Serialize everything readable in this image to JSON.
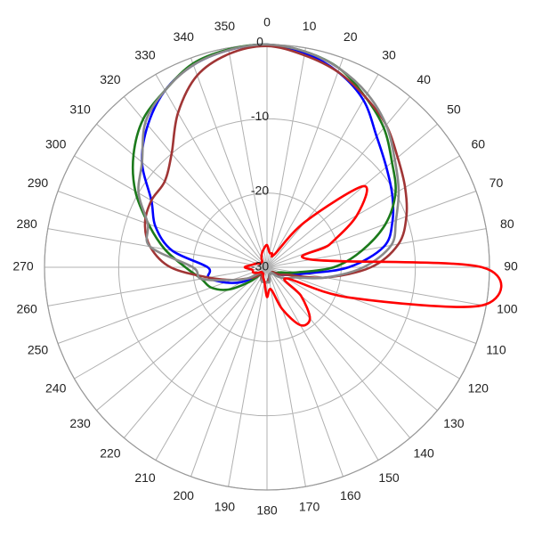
{
  "chart_data": {
    "type": "polar",
    "direction": "clockwise",
    "zero_location": "top",
    "rlim": [
      -30,
      0
    ],
    "rticks": [
      -30,
      -20,
      -10,
      0
    ],
    "thetaticks": [
      0,
      10,
      20,
      30,
      40,
      50,
      60,
      70,
      80,
      90,
      100,
      110,
      120,
      130,
      140,
      150,
      160,
      170,
      180,
      190,
      200,
      210,
      220,
      230,
      240,
      250,
      260,
      270,
      280,
      290,
      300,
      310,
      320,
      330,
      340,
      350
    ],
    "grid": true,
    "theta": [
      0,
      10,
      20,
      30,
      40,
      50,
      60,
      70,
      80,
      90,
      100,
      110,
      120,
      130,
      140,
      150,
      160,
      170,
      180,
      190,
      200,
      210,
      220,
      230,
      240,
      250,
      260,
      270,
      280,
      290,
      300,
      310,
      320,
      330,
      340,
      350
    ],
    "series": [
      {
        "color": "#0000ff",
        "values": [
          0,
          -0.7,
          -2,
          -4,
          -7,
          -9,
          -10.5,
          -12,
          -14,
          -19,
          -25,
          -27,
          -28,
          -28.5,
          -29,
          -29,
          -29,
          -28.5,
          -28,
          -28,
          -28,
          -28.5,
          -29,
          -28,
          -26,
          -24,
          -22,
          -22,
          -17,
          -14,
          -12,
          -8,
          -5,
          -2.5,
          -1,
          -0.3
        ]
      },
      {
        "color": "#1b7a1b",
        "values": [
          0,
          -0.5,
          -1.5,
          -3.5,
          -5.5,
          -8,
          -10,
          -13,
          -17,
          -21,
          -26,
          -28,
          -28.5,
          -29,
          -29,
          -29,
          -29,
          -28.5,
          -28,
          -28,
          -28,
          -28.5,
          -29,
          -27,
          -24,
          -22,
          -21,
          -19,
          -16,
          -13,
          -9.5,
          -6.5,
          -4,
          -2.5,
          -0.8,
          -0.2
        ]
      },
      {
        "color": "#a03535",
        "values": [
          -0.2,
          -1,
          -2,
          -3.5,
          -5,
          -7,
          -8.5,
          -10,
          -12,
          -16,
          -22,
          -27,
          -28,
          -29,
          -29,
          -29,
          -29,
          -28.5,
          -28,
          -28,
          -28,
          -28.5,
          -29,
          -28,
          -27,
          -25,
          -22,
          -17,
          -14,
          -12.5,
          -12,
          -12,
          -10,
          -6,
          -2.5,
          -0.8
        ]
      },
      {
        "color": "#8a8a8a",
        "values": [
          0,
          -0.5,
          -1.5,
          -3,
          -5,
          -7.5,
          -9.5,
          -11.5,
          -13,
          -17,
          -22,
          -26,
          -27,
          -28,
          -29,
          -29,
          -29,
          -28,
          -28,
          -28,
          -28,
          -29,
          -29,
          -29,
          -27,
          -25,
          -21,
          -20,
          -14,
          -12.9,
          -10,
          -8,
          -4.5,
          -2.5,
          -1,
          -0.3
        ]
      },
      {
        "color": "#ff0000",
        "values": [
          -27,
          -28,
          -28,
          -28,
          -22,
          -13,
          -16,
          -21,
          -24,
          -1,
          -0.5,
          -18,
          -27,
          -24,
          -21,
          -21,
          -24,
          -27,
          -26,
          -28,
          -28.5,
          -29,
          -29,
          -29,
          -28.5,
          -28,
          -28,
          -27,
          -28,
          -28.5,
          -29,
          -29,
          -29,
          -28.5,
          -28,
          -27.5
        ]
      }
    ]
  }
}
